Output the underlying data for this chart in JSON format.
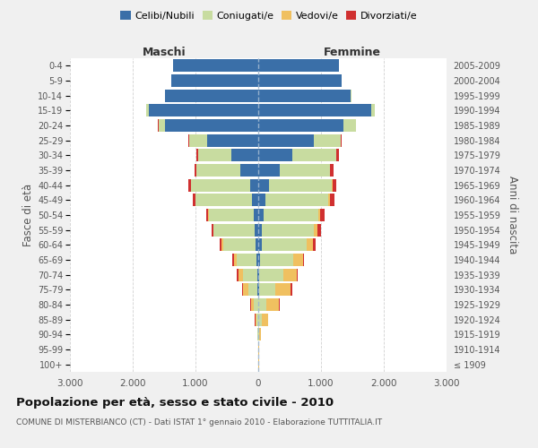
{
  "age_groups": [
    "100+",
    "95-99",
    "90-94",
    "85-89",
    "80-84",
    "75-79",
    "70-74",
    "65-69",
    "60-64",
    "55-59",
    "50-54",
    "45-49",
    "40-44",
    "35-39",
    "30-34",
    "25-29",
    "20-24",
    "15-19",
    "10-14",
    "5-9",
    "0-4"
  ],
  "birth_years": [
    "≤ 1909",
    "1910-1914",
    "1915-1919",
    "1920-1924",
    "1925-1929",
    "1930-1934",
    "1935-1939",
    "1940-1944",
    "1945-1949",
    "1950-1954",
    "1955-1959",
    "1960-1964",
    "1965-1969",
    "1970-1974",
    "1975-1979",
    "1980-1984",
    "1985-1989",
    "1990-1994",
    "1995-1999",
    "2000-2004",
    "2005-2009"
  ],
  "maschi": {
    "celibe": [
      0,
      0,
      0,
      0,
      0,
      10,
      20,
      30,
      50,
      60,
      70,
      100,
      130,
      280,
      430,
      820,
      1490,
      1750,
      1480,
      1380,
      1360
    ],
    "coniugato": [
      0,
      5,
      10,
      30,
      70,
      150,
      230,
      310,
      510,
      650,
      720,
      900,
      940,
      700,
      530,
      280,
      100,
      30,
      5,
      0,
      0
    ],
    "vedovo": [
      0,
      0,
      5,
      20,
      50,
      80,
      70,
      50,
      20,
      10,
      5,
      5,
      0,
      0,
      0,
      0,
      0,
      0,
      0,
      0,
      0
    ],
    "divorziato": [
      0,
      0,
      0,
      5,
      10,
      20,
      20,
      20,
      30,
      30,
      30,
      40,
      40,
      40,
      30,
      10,
      5,
      0,
      0,
      0,
      0
    ]
  },
  "femmine": {
    "nubile": [
      0,
      0,
      0,
      0,
      0,
      10,
      20,
      30,
      50,
      60,
      80,
      120,
      170,
      340,
      540,
      880,
      1350,
      1800,
      1470,
      1330,
      1290
    ],
    "coniugata": [
      5,
      5,
      10,
      50,
      130,
      260,
      380,
      520,
      720,
      820,
      870,
      1000,
      1000,
      800,
      700,
      430,
      200,
      50,
      10,
      0,
      0
    ],
    "vedova": [
      5,
      5,
      30,
      100,
      200,
      250,
      210,
      160,
      100,
      60,
      40,
      20,
      10,
      5,
      5,
      0,
      0,
      0,
      0,
      0,
      0
    ],
    "divorziata": [
      0,
      0,
      0,
      5,
      10,
      20,
      20,
      25,
      50,
      60,
      60,
      70,
      60,
      50,
      40,
      20,
      5,
      0,
      0,
      0,
      0
    ]
  },
  "colors": {
    "celibe": "#3a6fa8",
    "coniugato": "#c8dca0",
    "vedovo": "#f0c060",
    "divorziato": "#d03030"
  },
  "xlim": 3000,
  "title": "Popolazione per età, sesso e stato civile - 2010",
  "subtitle": "COMUNE DI MISTERBIANCO (CT) - Dati ISTAT 1° gennaio 2010 - Elaborazione TUTTITALIA.IT",
  "xlabel_maschi": "Maschi",
  "xlabel_femmine": "Femmine",
  "ylabel_left": "Fasce di età",
  "ylabel_right": "Anni di nascita",
  "legend_labels": [
    "Celibi/Nubili",
    "Coniugati/e",
    "Vedovi/e",
    "Divorziati/e"
  ],
  "background_color": "#f0f0f0",
  "plot_bg_color": "#ffffff"
}
